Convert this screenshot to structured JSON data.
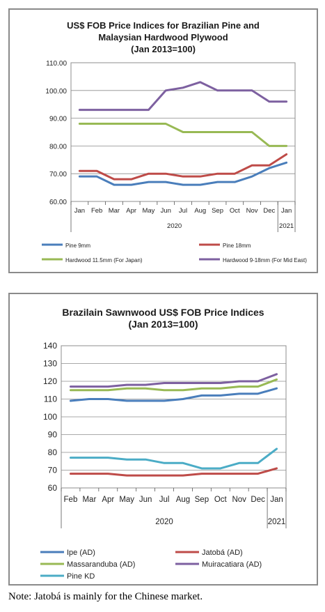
{
  "chart_data": [
    {
      "type": "line",
      "title": [
        "US$ FOB Price Indices for Brazilian Pine and",
        "Malaysian Hardwood Plywood",
        "(Jan 2013=100)"
      ],
      "categories": [
        "Jan",
        "Feb",
        "Mar",
        "Apr",
        "May",
        "Jun",
        "Jul",
        "Aug",
        "Sep",
        "Oct",
        "Nov",
        "Dec",
        "Jan"
      ],
      "year_labels": [
        {
          "label": "2020",
          "span": [
            0,
            11
          ]
        },
        {
          "label": "2021",
          "span": [
            12,
            12
          ]
        }
      ],
      "ylim": [
        60,
        110
      ],
      "yticks": [
        "60.00",
        "70.00",
        "80.00",
        "90.00",
        "100.00",
        "110.00"
      ],
      "grid": true,
      "legend_position": "bottom",
      "series": [
        {
          "name": "Pine 9mm",
          "color": "#4a7ebb",
          "values": [
            69,
            69,
            66,
            66,
            67,
            67,
            66,
            66,
            67,
            67,
            69,
            72,
            74
          ]
        },
        {
          "name": "Pine 18mm",
          "color": "#be4b48",
          "values": [
            71,
            71,
            68,
            68,
            70,
            70,
            69,
            69,
            70,
            70,
            73,
            73,
            77
          ]
        },
        {
          "name": "Hardwood 11.5mm (For Japan)",
          "color": "#98b954",
          "values": [
            88,
            88,
            88,
            88,
            88,
            88,
            85,
            85,
            85,
            85,
            85,
            80,
            80
          ]
        },
        {
          "name": "Hardwood 9-18mm (For Mid East)",
          "color": "#7d60a0",
          "values": [
            93,
            93,
            93,
            93,
            93,
            100,
            101,
            103,
            100,
            100,
            100,
            96,
            96
          ]
        }
      ]
    },
    {
      "type": "line",
      "title": [
        "Brazilain Sawnwood US$ FOB Price Indices",
        "(Jan 2013=100)"
      ],
      "categories": [
        "Feb",
        "Mar",
        "Apr",
        "May",
        "Jun",
        "Jul",
        "Aug",
        "Sep",
        "Oct",
        "Nov",
        "Dec",
        "Jan"
      ],
      "year_labels": [
        {
          "label": "2020",
          "span": [
            0,
            10
          ]
        },
        {
          "label": "2021",
          "span": [
            11,
            11
          ]
        }
      ],
      "ylim": [
        60,
        140
      ],
      "yticks": [
        "60",
        "70",
        "80",
        "90",
        "100",
        "110",
        "120",
        "130",
        "140"
      ],
      "grid": true,
      "legend_position": "bottom",
      "series": [
        {
          "name": "Ipe (AD)",
          "color": "#4a7ebb",
          "values": [
            109,
            110,
            110,
            109,
            109,
            109,
            110,
            112,
            112,
            113,
            113,
            116
          ]
        },
        {
          "name": "Jatobá (AD)",
          "color": "#be4b48",
          "values": [
            68,
            68,
            68,
            67,
            67,
            67,
            67,
            68,
            68,
            68,
            68,
            71
          ]
        },
        {
          "name": "Massaranduba (AD)",
          "color": "#98b954",
          "values": [
            115,
            115,
            115,
            116,
            116,
            115,
            115,
            116,
            116,
            117,
            117,
            121
          ]
        },
        {
          "name": "Muiracatiara (AD)",
          "color": "#7d60a0",
          "values": [
            117,
            117,
            117,
            118,
            118,
            119,
            119,
            119,
            119,
            120,
            120,
            124
          ]
        },
        {
          "name": "Pine KD",
          "color": "#4bacc6",
          "values": [
            77,
            77,
            77,
            76,
            76,
            74,
            74,
            71,
            71,
            74,
            74,
            82
          ]
        }
      ]
    }
  ],
  "note": "Note: Jatobá is mainly for the Chinese market."
}
